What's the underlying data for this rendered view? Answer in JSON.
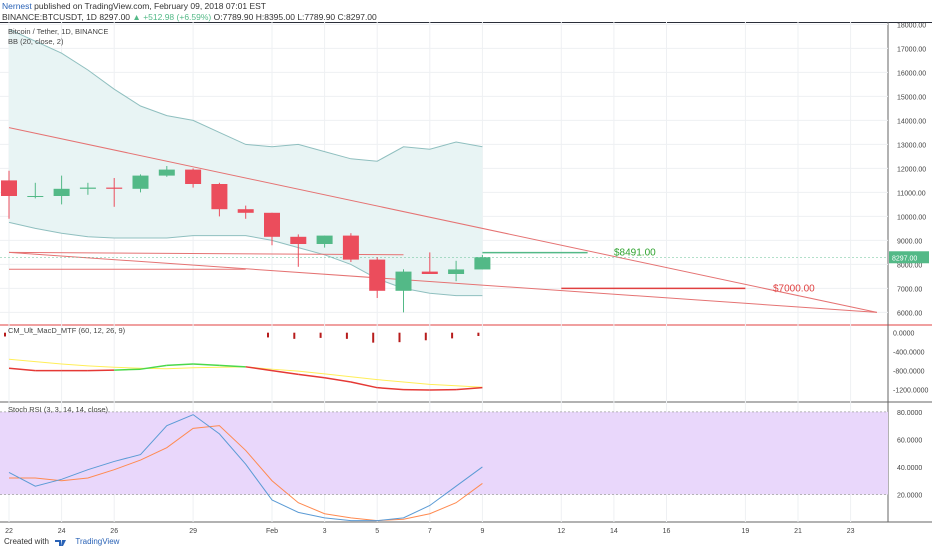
{
  "header": {
    "author": "Nernest",
    "published": "published on TradingView.com, February 09, 2018 07:01 EST",
    "symbol": "BINANCE:BTCUSDT, 1D",
    "last": "8297.00",
    "change": "▲ +512.98 (+6.59%)",
    "open_label": "O:",
    "open": "7789.90",
    "high_label": "H:",
    "high": "8395.00",
    "low_label": "L:",
    "low": "7789.90",
    "close_label": "C:",
    "close": "8297.00"
  },
  "colors": {
    "up": "#53b987",
    "down": "#eb4d5c",
    "trend": "#e57373",
    "bb": "#8fbfbf",
    "bb_fill": "#e8f4f4",
    "macd_up": "#4bd84b",
    "macd_down": "#e53935",
    "signal": "#ffee58",
    "k": "#5b9bd5",
    "d": "#ff8a50",
    "rsi_band": "#e9d7fb"
  },
  "chart_data": [
    {
      "type": "candlestick",
      "title": "Bitcoin / Tether, 1D, BINANCE",
      "indicator": "BB (20, close, 2)",
      "x": [
        "2018-01-22",
        "2018-01-23",
        "2018-01-24",
        "2018-01-25",
        "2018-01-26",
        "2018-01-27",
        "2018-01-28",
        "2018-01-29",
        "2018-01-30",
        "2018-01-31",
        "2018-02-01",
        "2018-02-02",
        "2018-02-03",
        "2018-02-04",
        "2018-02-05",
        "2018-02-06",
        "2018-02-07",
        "2018-02-08",
        "2018-02-09"
      ],
      "open": [
        11500,
        10850,
        10850,
        11150,
        11200,
        11150,
        11700,
        11950,
        11350,
        10300,
        10150,
        9150,
        8850,
        9200,
        8200,
        6900,
        7700,
        7600,
        7790
      ],
      "high": [
        11900,
        11400,
        11700,
        11400,
        11600,
        11750,
        12100,
        12000,
        11400,
        10450,
        10150,
        9250,
        9200,
        9300,
        8300,
        7800,
        8500,
        8150,
        8395
      ],
      "low": [
        9900,
        10750,
        10500,
        10900,
        10400,
        11000,
        11650,
        11200,
        10000,
        9900,
        8800,
        7900,
        8700,
        8100,
        6600,
        6000,
        7600,
        7300,
        7790
      ],
      "close": [
        10850,
        10850,
        11150,
        11200,
        11150,
        11700,
        11950,
        11350,
        10300,
        10150,
        9150,
        8850,
        9200,
        8200,
        6900,
        7700,
        7600,
        7790,
        8297
      ],
      "bb_upper": [
        17800,
        17300,
        16800,
        16100,
        15300,
        14600,
        14200,
        14000,
        13500,
        13000,
        12900,
        13000,
        12700,
        12400,
        12300,
        12900,
        12800,
        13100,
        12900
      ],
      "bb_lower": [
        9750,
        9500,
        9300,
        9150,
        9100,
        9100,
        9100,
        9200,
        9200,
        9200,
        9000,
        8700,
        8400,
        8000,
        7400,
        7000,
        6800,
        6700,
        6700
      ],
      "yticks": [
        "18000.00",
        "17000.00",
        "16000.00",
        "15000.00",
        "14000.00",
        "13000.00",
        "12000.00",
        "11000.00",
        "10000.00",
        "9000.00",
        "8000.00",
        "7000.00",
        "6000.00"
      ],
      "ylim": [
        5600,
        18100
      ],
      "last_price_label": "8297.00",
      "annotations": [
        "$8491.00",
        "$7000.00"
      ],
      "lines": [
        {
          "name": "descending trend",
          "from": [
            "2018-01-22",
            13700
          ],
          "to": [
            "2018-02-24",
            6000
          ]
        },
        {
          "name": "lower trend",
          "from": [
            "2018-01-22",
            8500
          ],
          "to": [
            "2018-02-24",
            6000
          ]
        },
        {
          "name": "horizontal",
          "from": [
            "2018-01-22",
            8500
          ],
          "to": [
            "2018-02-06",
            8400
          ]
        },
        {
          "name": "support",
          "from": [
            "2018-01-22",
            7800
          ],
          "to": [
            "2018-01-31",
            7800
          ]
        },
        {
          "name": "target 8491",
          "from": [
            "2018-02-09",
            8491
          ],
          "to": [
            "2018-02-13",
            8491
          ]
        },
        {
          "name": "target 7000",
          "from": [
            "2018-02-12",
            7000
          ],
          "to": [
            "2018-02-19",
            7000
          ]
        }
      ]
    },
    {
      "type": "line",
      "title": "CM_Ult_MacD_MTF (60, 12, 26, 9)",
      "x": [
        "2018-01-22",
        "2018-01-23",
        "2018-01-24",
        "2018-01-25",
        "2018-01-26",
        "2018-01-27",
        "2018-01-28",
        "2018-01-29",
        "2018-01-30",
        "2018-01-31",
        "2018-02-01",
        "2018-02-02",
        "2018-02-03",
        "2018-02-04",
        "2018-02-05",
        "2018-02-06",
        "2018-02-07",
        "2018-02-08",
        "2018-02-09"
      ],
      "series": [
        {
          "values": [
            -750,
            -800,
            -800,
            -800,
            -790,
            -770,
            -690,
            -660,
            -690,
            -720,
            -800,
            -880,
            -950,
            -1040,
            -1160,
            -1200,
            -1210,
            -1200,
            -1160
          ]
        },
        {
          "values": [
            -560,
            -610,
            -660,
            -700,
            -730,
            -750,
            -760,
            -740,
            -730,
            -720,
            -770,
            -810,
            -870,
            -930,
            -990,
            -1040,
            -1090,
            -1120,
            -1150
          ]
        }
      ],
      "histogram": [
        -80,
        0,
        0,
        0,
        0,
        0,
        0,
        0,
        0,
        0,
        -100,
        -130,
        -110,
        -130,
        -210,
        -200,
        -160,
        -120,
        -70
      ],
      "yticks": [
        "0.0000",
        "-400.0000",
        "-800.0000",
        "-1200.0000"
      ],
      "ylim": [
        -1420,
        120
      ]
    },
    {
      "type": "line",
      "title": "Stoch RSI (3, 3, 14, 14, close)",
      "x": [
        "2018-01-22",
        "2018-01-23",
        "2018-01-24",
        "2018-01-25",
        "2018-01-26",
        "2018-01-27",
        "2018-01-28",
        "2018-01-29",
        "2018-01-30",
        "2018-01-31",
        "2018-02-01",
        "2018-02-02",
        "2018-02-03",
        "2018-02-04",
        "2018-02-05",
        "2018-02-06",
        "2018-02-07",
        "2018-02-08",
        "2018-02-09"
      ],
      "series": [
        {
          "values": [
            36,
            26,
            31,
            38,
            44,
            49,
            70,
            78,
            64,
            42,
            16,
            7,
            3,
            1,
            1,
            3,
            12,
            26,
            40
          ]
        },
        {
          "values": [
            32,
            32,
            30,
            32,
            38,
            45,
            54,
            68,
            70,
            52,
            30,
            14,
            6,
            3,
            1,
            2,
            6,
            14,
            28
          ]
        }
      ],
      "yticks": [
        "80.0000",
        "60.0000",
        "40.0000",
        "20.0000"
      ],
      "band": [
        20,
        80
      ],
      "ylim": [
        0,
        85
      ],
      "xticks": [
        "22",
        "24",
        "26",
        "29",
        "Feb",
        "3",
        "5",
        "7",
        "9",
        "12",
        "14",
        "16",
        "19",
        "21",
        "23"
      ]
    }
  ],
  "footer": {
    "created_with": "Created with",
    "brand": "TradingView"
  }
}
